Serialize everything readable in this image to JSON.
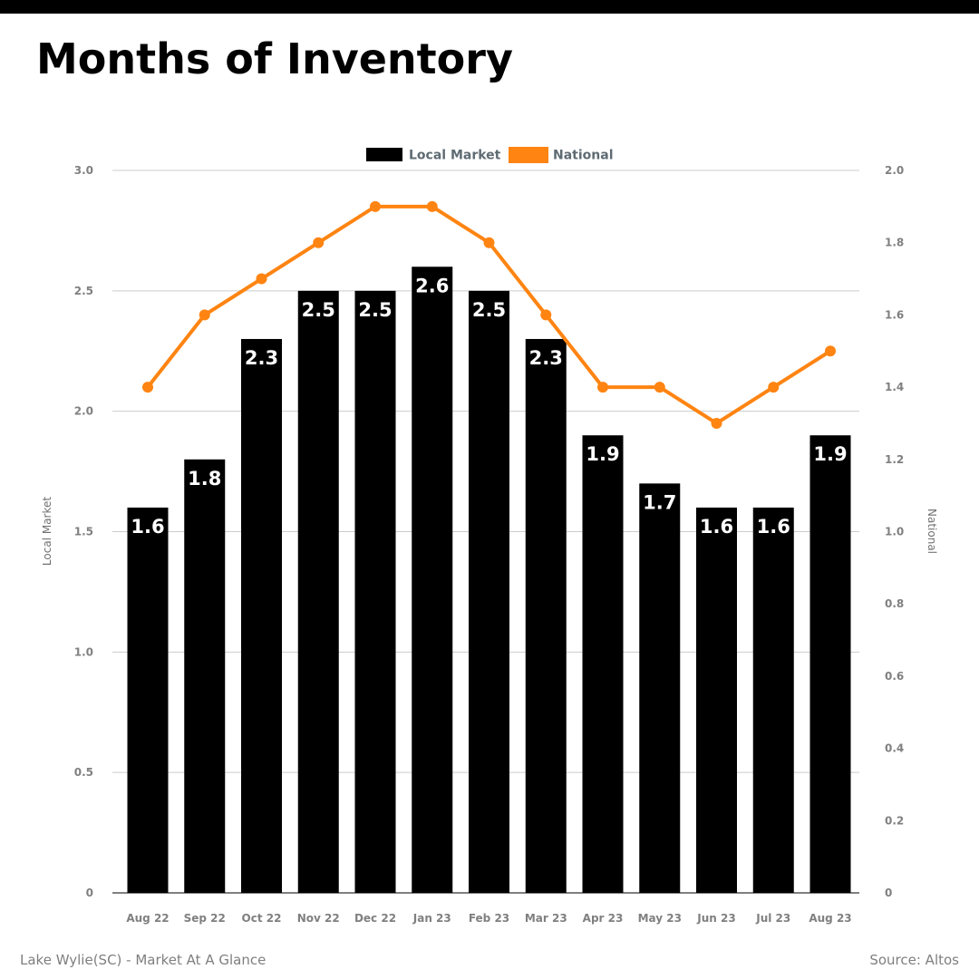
{
  "header": {
    "title": "Months of Inventory"
  },
  "footer": {
    "left": "Lake Wylie(SC) - Market At A Glance",
    "right": "Source: Altos"
  },
  "chart_data": {
    "type": "bar",
    "categories": [
      "Aug 22",
      "Sep 22",
      "Oct 22",
      "Nov 22",
      "Dec 22",
      "Jan 23",
      "Feb 23",
      "Mar 23",
      "Apr 23",
      "May 23",
      "Jun 23",
      "Jul 23",
      "Aug 23"
    ],
    "series": [
      {
        "name": "Local Market",
        "type": "bar",
        "axis": "left",
        "color": "#000000",
        "values": [
          1.6,
          1.8,
          2.3,
          2.5,
          2.5,
          2.6,
          2.5,
          2.3,
          1.9,
          1.7,
          1.6,
          1.6,
          1.9
        ]
      },
      {
        "name": "National",
        "type": "line",
        "axis": "right",
        "color": "#ff8412",
        "values": [
          1.4,
          1.6,
          1.7,
          1.8,
          1.9,
          1.9,
          1.8,
          1.6,
          1.4,
          1.4,
          1.3,
          1.4,
          1.5
        ]
      }
    ],
    "y_left": {
      "label": "Local Market",
      "ylim": [
        0,
        3.0
      ],
      "ticks": [
        0,
        0.5,
        1.0,
        1.5,
        2.0,
        2.5,
        3.0
      ],
      "tick_labels": [
        "0",
        "0.5",
        "1.0",
        "1.5",
        "2.0",
        "2.5",
        "3.0"
      ]
    },
    "y_right": {
      "label": "National",
      "ylim": [
        0,
        2.0
      ],
      "ticks": [
        0,
        0.2,
        0.4,
        0.6,
        0.8,
        1.0,
        1.2,
        1.4,
        1.6,
        1.8,
        2.0
      ],
      "tick_labels": [
        "0",
        "0.2",
        "0.4",
        "0.6",
        "0.8",
        "1.0",
        "1.2",
        "1.4",
        "1.6",
        "1.8",
        "2.0"
      ]
    },
    "grid": true,
    "legend": "top-center",
    "data_labels": true
  }
}
